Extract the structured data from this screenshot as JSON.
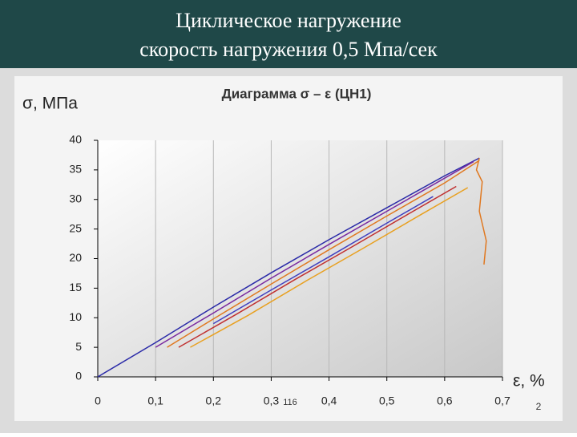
{
  "slide": {
    "title_line1": "Циклическое нагружение",
    "title_line2": "скорость нагружения  0,5 Мпа/сек",
    "overlay_text": "116",
    "page_number": "2"
  },
  "chart_data": {
    "type": "line",
    "title": "Диаграмма σ – ε  (ЦН1)",
    "y_label": "σ, МПа",
    "x_label": "ε, %",
    "xlim": [
      0,
      0.7
    ],
    "ylim": [
      0,
      40
    ],
    "xticks": [
      0,
      {
        "value": 0.1,
        "label": "0,1"
      },
      {
        "value": 0.2,
        "label": "0,2"
      },
      {
        "value": 0.3,
        "label": "0,3"
      },
      {
        "value": 0.4,
        "label": "0,4"
      },
      {
        "value": 0.5,
        "label": "0,5"
      },
      {
        "value": 0.6,
        "label": "0,6"
      },
      {
        "value": 0.7,
        "label": "0,7"
      }
    ],
    "yticks": [
      0,
      5,
      10,
      15,
      20,
      25,
      30,
      35,
      40
    ],
    "grid": "x",
    "series": [
      {
        "color": "#2a2aa8",
        "x": [
          0,
          0.1,
          0.2,
          0.3,
          0.4,
          0.5,
          0.6,
          0.66
        ],
        "values": [
          0,
          5.8,
          11.8,
          17.6,
          23.2,
          28.6,
          34,
          37
        ]
      },
      {
        "color": "#7a2aa0",
        "x": [
          0.1,
          0.2,
          0.3,
          0.4,
          0.5,
          0.6,
          0.65
        ],
        "values": [
          5,
          10.8,
          16.7,
          22.4,
          28,
          33.6,
          36.4
        ]
      },
      {
        "color": "#e07820",
        "x": [
          0.12,
          0.2,
          0.3,
          0.4,
          0.5,
          0.6,
          0.66
        ],
        "values": [
          5,
          9.8,
          15.7,
          21.5,
          27.2,
          32.8,
          36.6
        ]
      },
      {
        "color": "#c03030",
        "x": [
          0.14,
          0.24,
          0.34,
          0.44,
          0.54,
          0.62
        ],
        "values": [
          5,
          10.6,
          16.4,
          22,
          27.7,
          32.2
        ]
      },
      {
        "color": "#e8a020",
        "x": [
          0.16,
          0.26,
          0.36,
          0.46,
          0.56,
          0.64
        ],
        "values": [
          5,
          10.4,
          16.2,
          21.8,
          27.5,
          32
        ]
      },
      {
        "color": "#4040c0",
        "x": [
          0.2,
          0.3,
          0.4,
          0.5,
          0.58
        ],
        "values": [
          9,
          14.7,
          20.3,
          26,
          30.5
        ]
      },
      {
        "color": "#e07820",
        "x": [
          0.66,
          0.655,
          0.665,
          0.66,
          0.672,
          0.668
        ],
        "values": [
          37,
          35,
          33,
          28,
          23,
          19
        ]
      }
    ]
  }
}
